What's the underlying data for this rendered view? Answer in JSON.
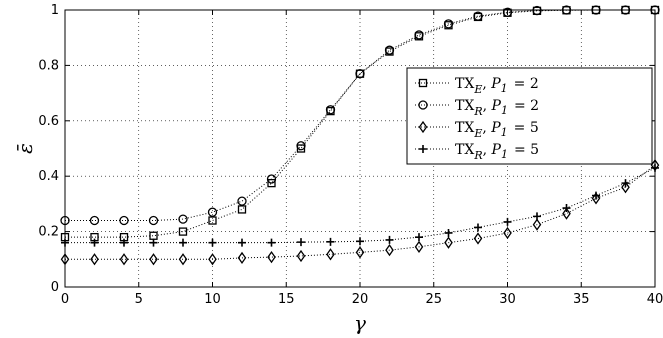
{
  "chart_data": {
    "type": "line",
    "xlabel": "γ",
    "ylabel": "ε̄",
    "xlim": [
      0,
      40
    ],
    "ylim": [
      0,
      1
    ],
    "xticks": [
      0,
      5,
      10,
      15,
      20,
      25,
      30,
      35,
      40
    ],
    "yticks": [
      0,
      0.2,
      0.4,
      0.6,
      0.8,
      1
    ],
    "xtick_labels": [
      "0",
      "5",
      "10",
      "15",
      "20",
      "25",
      "30",
      "35",
      "40"
    ],
    "ytick_labels": [
      "0",
      "0.2",
      "0.4",
      "0.6",
      "0.8",
      "1"
    ],
    "grid": true,
    "legend_position": "right",
    "x": [
      0,
      2,
      4,
      6,
      8,
      10,
      12,
      14,
      16,
      18,
      20,
      22,
      24,
      26,
      28,
      30,
      32,
      34,
      36,
      38,
      40
    ],
    "series": [
      {
        "legend": {
          "main": "TX",
          "sub": "E",
          "param": "P",
          "param_sub": "1",
          "value": "= 2"
        },
        "marker": "square",
        "values": [
          0.18,
          0.18,
          0.18,
          0.185,
          0.2,
          0.24,
          0.28,
          0.375,
          0.5,
          0.635,
          0.77,
          0.85,
          0.905,
          0.945,
          0.975,
          0.99,
          0.997,
          0.999,
          1.0,
          1.0,
          1.0
        ]
      },
      {
        "legend": {
          "main": "TX",
          "sub": "R",
          "param": "P",
          "param_sub": "1",
          "value": "= 2"
        },
        "marker": "circle",
        "values": [
          0.24,
          0.24,
          0.24,
          0.24,
          0.245,
          0.27,
          0.31,
          0.39,
          0.51,
          0.64,
          0.77,
          0.855,
          0.91,
          0.95,
          0.978,
          0.992,
          0.998,
          1.0,
          1.0,
          1.0,
          1.0
        ]
      },
      {
        "legend": {
          "main": "TX",
          "sub": "E",
          "param": "P",
          "param_sub": "1",
          "value": "= 5"
        },
        "marker": "diamond",
        "values": [
          0.1,
          0.1,
          0.1,
          0.1,
          0.1,
          0.1,
          0.105,
          0.108,
          0.112,
          0.118,
          0.125,
          0.133,
          0.145,
          0.16,
          0.175,
          0.195,
          0.225,
          0.265,
          0.32,
          0.36,
          0.44
        ]
      },
      {
        "legend": {
          "main": "TX",
          "sub": "R",
          "param": "P",
          "param_sub": "1",
          "value": "= 5"
        },
        "marker": "plus",
        "values": [
          0.16,
          0.16,
          0.16,
          0.16,
          0.16,
          0.16,
          0.16,
          0.16,
          0.162,
          0.163,
          0.165,
          0.17,
          0.18,
          0.195,
          0.215,
          0.235,
          0.255,
          0.285,
          0.33,
          0.375,
          0.43
        ]
      }
    ]
  }
}
